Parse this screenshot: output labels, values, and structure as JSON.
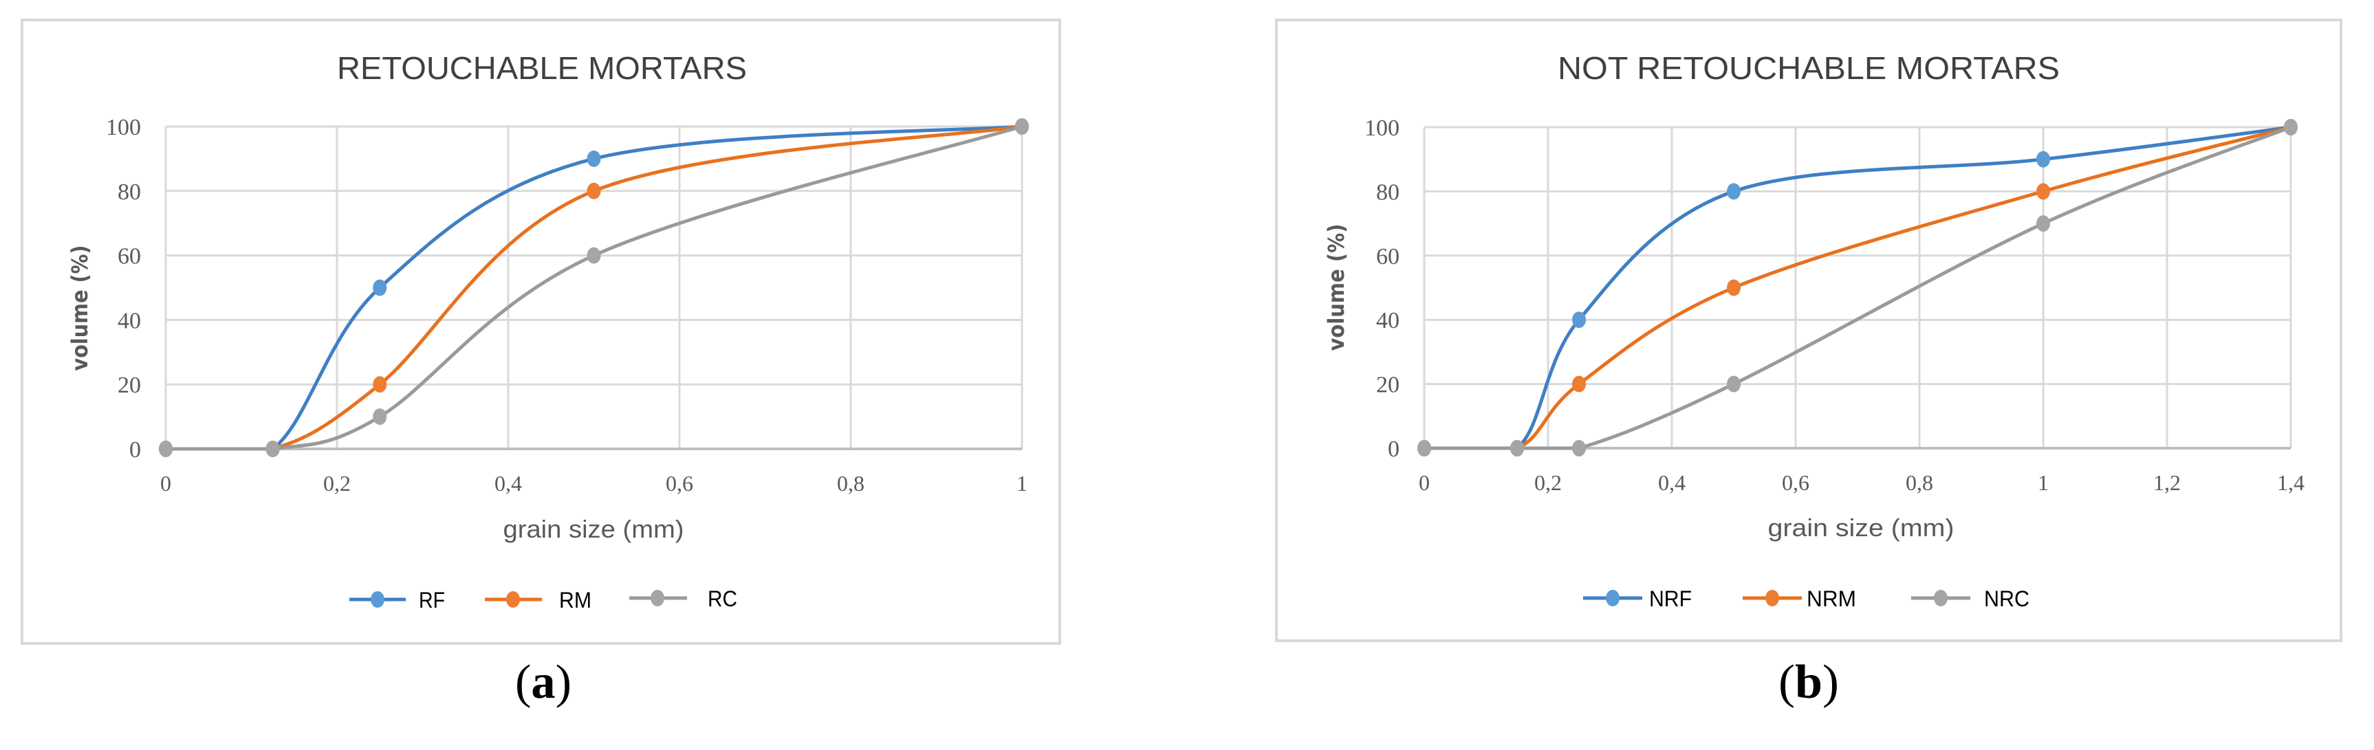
{
  "figure": {
    "captions": [
      "(a)",
      "(b)"
    ]
  },
  "chart_data": [
    {
      "type": "line",
      "title": "RETOUCHABLE MORTARS",
      "xlabel": "grain size (mm)",
      "ylabel": "volume (%)",
      "xlim": [
        0,
        1
      ],
      "ylim": [
        0,
        100
      ],
      "xticks": [
        "0",
        "0,2",
        "0,4",
        "0,6",
        "0,8",
        "1"
      ],
      "xtick_values": [
        0,
        0.2,
        0.4,
        0.6,
        0.8,
        1
      ],
      "yticks": [
        "0",
        "20",
        "40",
        "60",
        "80",
        "100"
      ],
      "ytick_values": [
        0,
        20,
        40,
        60,
        80,
        100
      ],
      "grid": true,
      "smooth": true,
      "legend_position": "bottom",
      "caption": "(a)",
      "series": [
        {
          "name": "RF",
          "color": "#5b9bd5",
          "line_color": "#3f7fc4",
          "x": [
            0,
            0.125,
            0.25,
            0.5,
            1
          ],
          "y": [
            0,
            0,
            50,
            90,
            100
          ]
        },
        {
          "name": "RM",
          "color": "#ed7d31",
          "line_color": "#e8711e",
          "x": [
            0,
            0.125,
            0.25,
            0.5,
            1
          ],
          "y": [
            0,
            0,
            20,
            80,
            100
          ]
        },
        {
          "name": "RC",
          "color": "#a5a5a5",
          "line_color": "#9a9a9a",
          "x": [
            0,
            0.125,
            0.25,
            0.5,
            1
          ],
          "y": [
            0,
            0,
            10,
            60,
            100
          ]
        }
      ]
    },
    {
      "type": "line",
      "title": "NOT RETOUCHABLE MORTARS",
      "xlabel": "grain size (mm)",
      "ylabel": "volume (%)",
      "xlim": [
        0,
        1.4
      ],
      "ylim": [
        0,
        100
      ],
      "xticks": [
        "0",
        "0,2",
        "0,4",
        "0,6",
        "0,8",
        "1",
        "1,2",
        "1,4"
      ],
      "xtick_values": [
        0,
        0.2,
        0.4,
        0.6,
        0.8,
        1,
        1.2,
        1.4
      ],
      "yticks": [
        "0",
        "20",
        "40",
        "60",
        "80",
        "100"
      ],
      "ytick_values": [
        0,
        20,
        40,
        60,
        80,
        100
      ],
      "grid": true,
      "smooth": true,
      "legend_position": "bottom",
      "caption": "(b)",
      "series": [
        {
          "name": "NRF",
          "color": "#5b9bd5",
          "line_color": "#3f7fc4",
          "x": [
            0,
            0.15,
            0.25,
            0.5,
            1,
            1.4
          ],
          "y": [
            0,
            0,
            40,
            80,
            90,
            100
          ]
        },
        {
          "name": "NRM",
          "color": "#ed7d31",
          "line_color": "#e8711e",
          "x": [
            0,
            0.15,
            0.25,
            0.5,
            1,
            1.4
          ],
          "y": [
            0,
            0,
            20,
            50,
            80,
            100
          ]
        },
        {
          "name": "NRC",
          "color": "#a5a5a5",
          "line_color": "#9a9a9a",
          "x": [
            0,
            0.15,
            0.25,
            0.5,
            1,
            1.4
          ],
          "y": [
            0,
            0,
            0,
            20,
            70,
            100
          ]
        }
      ]
    }
  ]
}
